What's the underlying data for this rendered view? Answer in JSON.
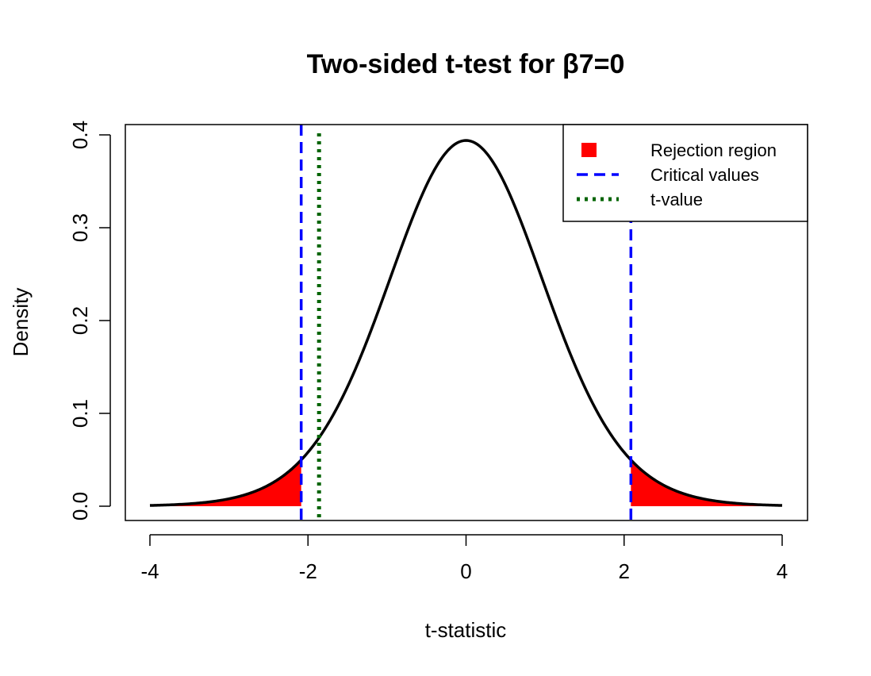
{
  "chart_data": {
    "type": "area",
    "title": "Two-sided t-test for β7=0",
    "xlabel": "t-statistic",
    "ylabel": "Density",
    "xlim": [
      -4,
      4
    ],
    "ylim": [
      0,
      0.4
    ],
    "x_ticks": [
      -4,
      -2,
      0,
      2,
      4
    ],
    "x_tick_labels": [
      "-4",
      "-2",
      "0",
      "2",
      "4"
    ],
    "y_ticks": [
      0.0,
      0.1,
      0.2,
      0.3,
      0.4
    ],
    "y_tick_labels": [
      "0.0",
      "0.1",
      "0.2",
      "0.3",
      "0.4"
    ],
    "distribution": {
      "name": "t",
      "df": 20
    },
    "critical_values": [
      -2.086,
      2.086
    ],
    "t_value": -1.86,
    "grid": false,
    "legend_position": "top-right",
    "legend": [
      {
        "label": "Rejection region",
        "symbol": "filled-square",
        "color": "#ff0000"
      },
      {
        "label": "Critical values",
        "symbol": "dashed-line",
        "color": "#0000ff"
      },
      {
        "label": "t-value",
        "symbol": "dotted-line",
        "color": "#006400"
      }
    ],
    "colors": {
      "curve": "#000000",
      "rejection_region": "#ff0000",
      "critical_line": "#0000ff",
      "t_value_line": "#006400"
    }
  }
}
